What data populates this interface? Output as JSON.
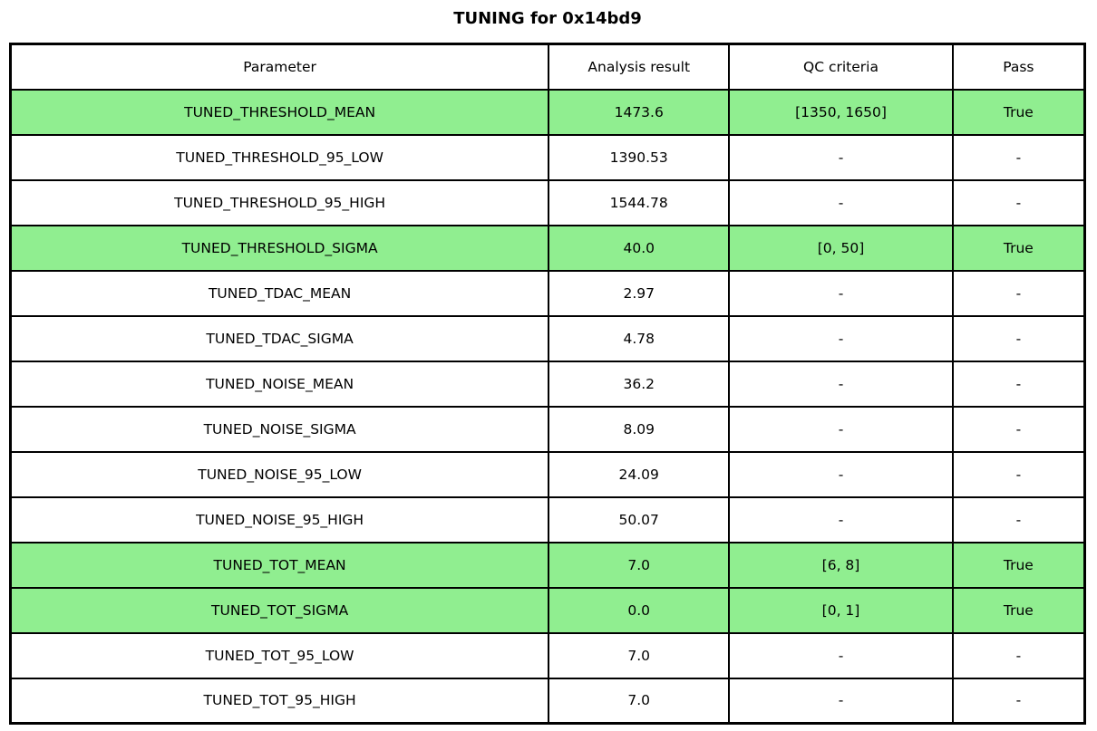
{
  "chart_data": {
    "type": "table",
    "title": "TUNING for 0x14bd9",
    "columns": [
      "Parameter",
      "Analysis result",
      "QC criteria",
      "Pass"
    ],
    "rows": [
      {
        "cells": [
          "TUNED_THRESHOLD_MEAN",
          "1473.6",
          "[1350, 1650]",
          "True"
        ],
        "highlight": true
      },
      {
        "cells": [
          "TUNED_THRESHOLD_95_LOW",
          "1390.53",
          "-",
          "-"
        ],
        "highlight": false
      },
      {
        "cells": [
          "TUNED_THRESHOLD_95_HIGH",
          "1544.78",
          "-",
          "-"
        ],
        "highlight": false
      },
      {
        "cells": [
          "TUNED_THRESHOLD_SIGMA",
          "40.0",
          "[0, 50]",
          "True"
        ],
        "highlight": true
      },
      {
        "cells": [
          "TUNED_TDAC_MEAN",
          "2.97",
          "-",
          "-"
        ],
        "highlight": false
      },
      {
        "cells": [
          "TUNED_TDAC_SIGMA",
          "4.78",
          "-",
          "-"
        ],
        "highlight": false
      },
      {
        "cells": [
          "TUNED_NOISE_MEAN",
          "36.2",
          "-",
          "-"
        ],
        "highlight": false
      },
      {
        "cells": [
          "TUNED_NOISE_SIGMA",
          "8.09",
          "-",
          "-"
        ],
        "highlight": false
      },
      {
        "cells": [
          "TUNED_NOISE_95_LOW",
          "24.09",
          "-",
          "-"
        ],
        "highlight": false
      },
      {
        "cells": [
          "TUNED_NOISE_95_HIGH",
          "50.07",
          "-",
          "-"
        ],
        "highlight": false
      },
      {
        "cells": [
          "TUNED_TOT_MEAN",
          "7.0",
          "[6, 8]",
          "True"
        ],
        "highlight": true
      },
      {
        "cells": [
          "TUNED_TOT_SIGMA",
          "0.0",
          "[0, 1]",
          "True"
        ],
        "highlight": true
      },
      {
        "cells": [
          "TUNED_TOT_95_LOW",
          "7.0",
          "-",
          "-"
        ],
        "highlight": false
      },
      {
        "cells": [
          "TUNED_TOT_95_HIGH",
          "7.0",
          "-",
          "-"
        ],
        "highlight": false
      }
    ],
    "highlighted_rows": [
      0,
      3,
      10,
      11
    ],
    "colors": {
      "highlight": "#90ee90",
      "border": "#000000",
      "background": "#ffffff",
      "text": "#000000"
    },
    "layout": {
      "legend": "none",
      "grid": "full-cell-borders",
      "column_alignment": [
        "center",
        "center",
        "center",
        "center"
      ]
    }
  }
}
